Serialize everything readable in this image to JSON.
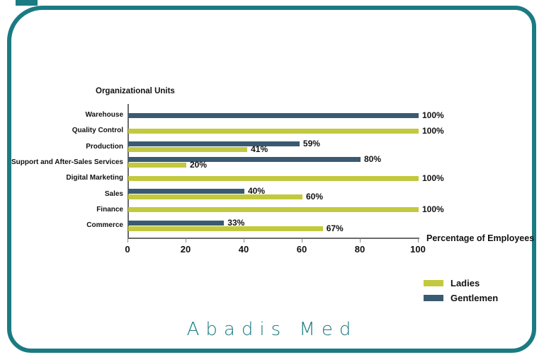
{
  "brand": {
    "name": "Abadis Med",
    "teal": "#1b7b82"
  },
  "chart_data": {
    "type": "bar",
    "orientation": "horizontal",
    "title": "Organizational Units",
    "xlabel": "Percentage of Employees",
    "xlim": [
      0,
      100
    ],
    "xticks": [
      0,
      20,
      40,
      60,
      80,
      100
    ],
    "grid": false,
    "legend_position": "lower right",
    "bar_value_labels": true,
    "value_label_suffix": "%",
    "categories": [
      "Warehouse",
      "Quality Control",
      "Production",
      "Support and After-Sales Services",
      "Digital Marketing",
      "Sales",
      "Finance",
      "Commerce"
    ],
    "series": [
      {
        "name": "Gentlemen",
        "color": "#3a5a72",
        "values": [
          100,
          0,
          59,
          80,
          0,
          40,
          0,
          33
        ]
      },
      {
        "name": "Ladies",
        "color": "#c3c93f",
        "values": [
          0,
          100,
          41,
          20,
          100,
          60,
          100,
          67
        ]
      }
    ],
    "legend": [
      {
        "name": "Ladies",
        "color": "#c3c93f"
      },
      {
        "name": "Gentlemen",
        "color": "#3a5a72"
      }
    ]
  }
}
